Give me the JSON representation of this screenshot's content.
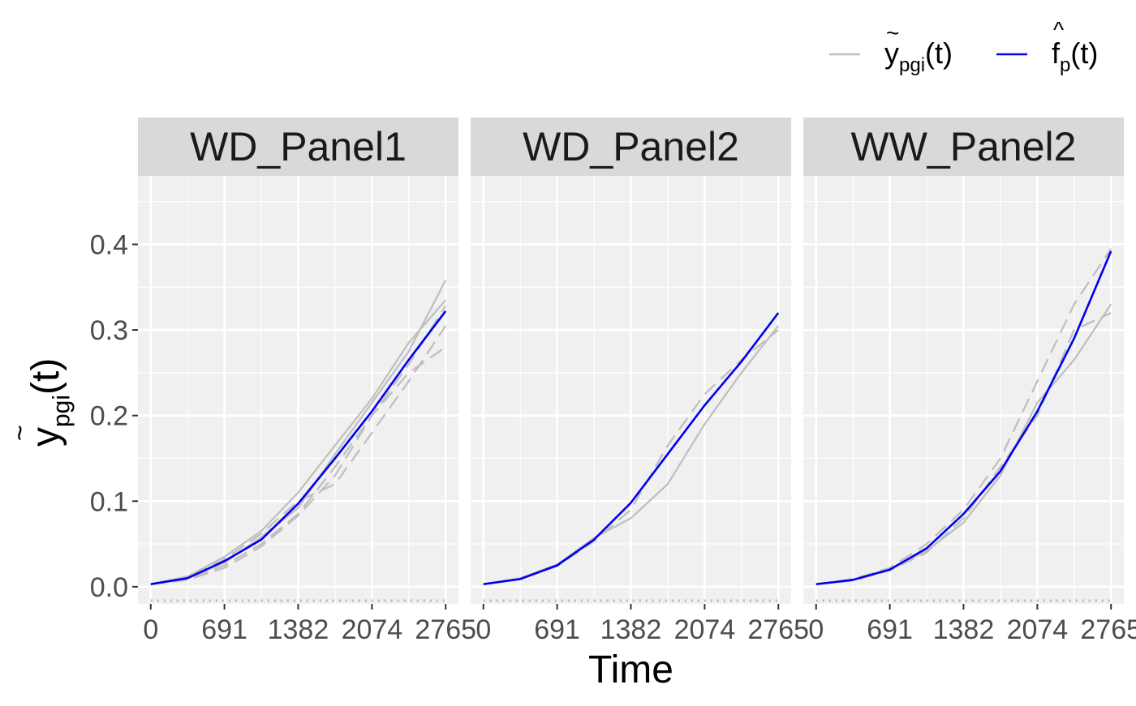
{
  "chart_data": {
    "type": "line",
    "facets": [
      {
        "title": "WD_Panel1",
        "fitted_series": {
          "x": [
            0,
            345,
            691,
            1036,
            1382,
            1728,
            2074,
            2419,
            2765
          ],
          "y": [
            0.003,
            0.01,
            0.03,
            0.055,
            0.097,
            0.15,
            0.205,
            0.265,
            0.322
          ]
        },
        "observed_series": [
          {
            "x": [
              0,
              345,
              691,
              1036,
              1382,
              1728,
              2074,
              2419,
              2765
            ],
            "y": [
              0.003,
              0.009,
              0.025,
              0.05,
              0.085,
              0.14,
              0.2,
              0.25,
              0.28
            ]
          },
          {
            "x": [
              0,
              345,
              691,
              1036,
              1382,
              1728,
              2074,
              2419,
              2765
            ],
            "y": [
              0.003,
              0.012,
              0.035,
              0.065,
              0.11,
              0.165,
              0.22,
              0.285,
              0.335
            ]
          },
          {
            "x": [
              0,
              345,
              691,
              1036,
              1382,
              1728,
              2074,
              2419,
              2765
            ],
            "y": [
              0.003,
              0.011,
              0.032,
              0.062,
              0.1,
              0.12,
              0.18,
              0.24,
              0.305
            ]
          },
          {
            "x": [
              0,
              345,
              691,
              1036,
              1382,
              1728,
              2074,
              2419,
              2765
            ],
            "y": [
              0.003,
              0.01,
              0.028,
              0.058,
              0.092,
              0.155,
              0.215,
              0.275,
              0.358
            ]
          },
          {
            "x": [
              0,
              345,
              691,
              1036,
              1382,
              1728,
              2074,
              2419,
              2765
            ],
            "y": [
              0.003,
              0.008,
              0.022,
              0.047,
              0.083,
              0.13,
              0.2,
              0.26,
              0.328
            ]
          }
        ]
      },
      {
        "title": "WD_Panel2",
        "fitted_series": {
          "x": [
            0,
            345,
            691,
            1036,
            1382,
            1728,
            2074,
            2419,
            2765
          ],
          "y": [
            0.003,
            0.009,
            0.025,
            0.055,
            0.098,
            0.155,
            0.212,
            0.263,
            0.32
          ]
        },
        "observed_series": [
          {
            "x": [
              0,
              345,
              691,
              1036,
              1382,
              1728,
              2074,
              2419,
              2765
            ],
            "y": [
              0.003,
              0.009,
              0.024,
              0.053,
              0.09,
              0.165,
              0.225,
              0.265,
              0.3
            ]
          },
          {
            "x": [
              0,
              345,
              691,
              1036,
              1382,
              1728,
              2074,
              2419,
              2765
            ],
            "y": [
              0.003,
              0.01,
              0.026,
              0.057,
              0.08,
              0.12,
              0.19,
              0.25,
              0.305
            ]
          }
        ]
      },
      {
        "title": "WW_Panel2",
        "fitted_series": {
          "x": [
            0,
            345,
            691,
            1036,
            1382,
            1728,
            2074,
            2419,
            2765
          ],
          "y": [
            0.003,
            0.008,
            0.02,
            0.045,
            0.085,
            0.135,
            0.205,
            0.29,
            0.392
          ]
        },
        "observed_series": [
          {
            "x": [
              0,
              345,
              691,
              1036,
              1382,
              1728,
              2074,
              2419,
              2765
            ],
            "y": [
              0.003,
              0.009,
              0.022,
              0.05,
              0.09,
              0.15,
              0.24,
              0.33,
              0.395
            ]
          },
          {
            "x": [
              0,
              345,
              691,
              1036,
              1382,
              1728,
              2074,
              2419,
              2765
            ],
            "y": [
              0.003,
              0.008,
              0.021,
              0.042,
              0.075,
              0.13,
              0.215,
              0.265,
              0.33
            ]
          },
          {
            "x": [
              0,
              345,
              691,
              1036,
              1382,
              1728,
              2074,
              2419,
              2765
            ],
            "y": [
              0.003,
              0.007,
              0.019,
              0.04,
              0.08,
              0.14,
              0.2,
              0.3,
              0.32
            ]
          }
        ]
      }
    ],
    "x_ticks": [
      0,
      691,
      1382,
      2074,
      2765
    ],
    "x_tick_labels": [
      "0",
      "691",
      "1382",
      "2074",
      "2765"
    ],
    "y_ticks": [
      0.0,
      0.1,
      0.2,
      0.3,
      0.4
    ],
    "y_tick_labels": [
      "0.0",
      "0.1",
      "0.2",
      "0.3",
      "0.4"
    ],
    "xlim": [
      -120,
      2885
    ],
    "ylim": [
      -0.02,
      0.48
    ],
    "xlabel": "Time",
    "ylabel": {
      "base": "y",
      "accent": "~",
      "sub": "pgi",
      "suffix": "(t)"
    },
    "legend": {
      "position": "top-right",
      "entries": [
        {
          "base": "y",
          "accent": "~",
          "sub": "pgi",
          "suffix": "(t)",
          "color": "#bebebe"
        },
        {
          "base": "f",
          "accent": "^",
          "sub": "p",
          "suffix": "(t)",
          "color": "#0000ee"
        }
      ]
    },
    "grid": true,
    "colors": {
      "panel_bg": "#f0f0f0",
      "strip_bg": "#d9d9d9",
      "grid": "#ffffff",
      "observed": "#bebebe",
      "fitted": "#0000ee",
      "rug": "#b3b3b3"
    }
  }
}
